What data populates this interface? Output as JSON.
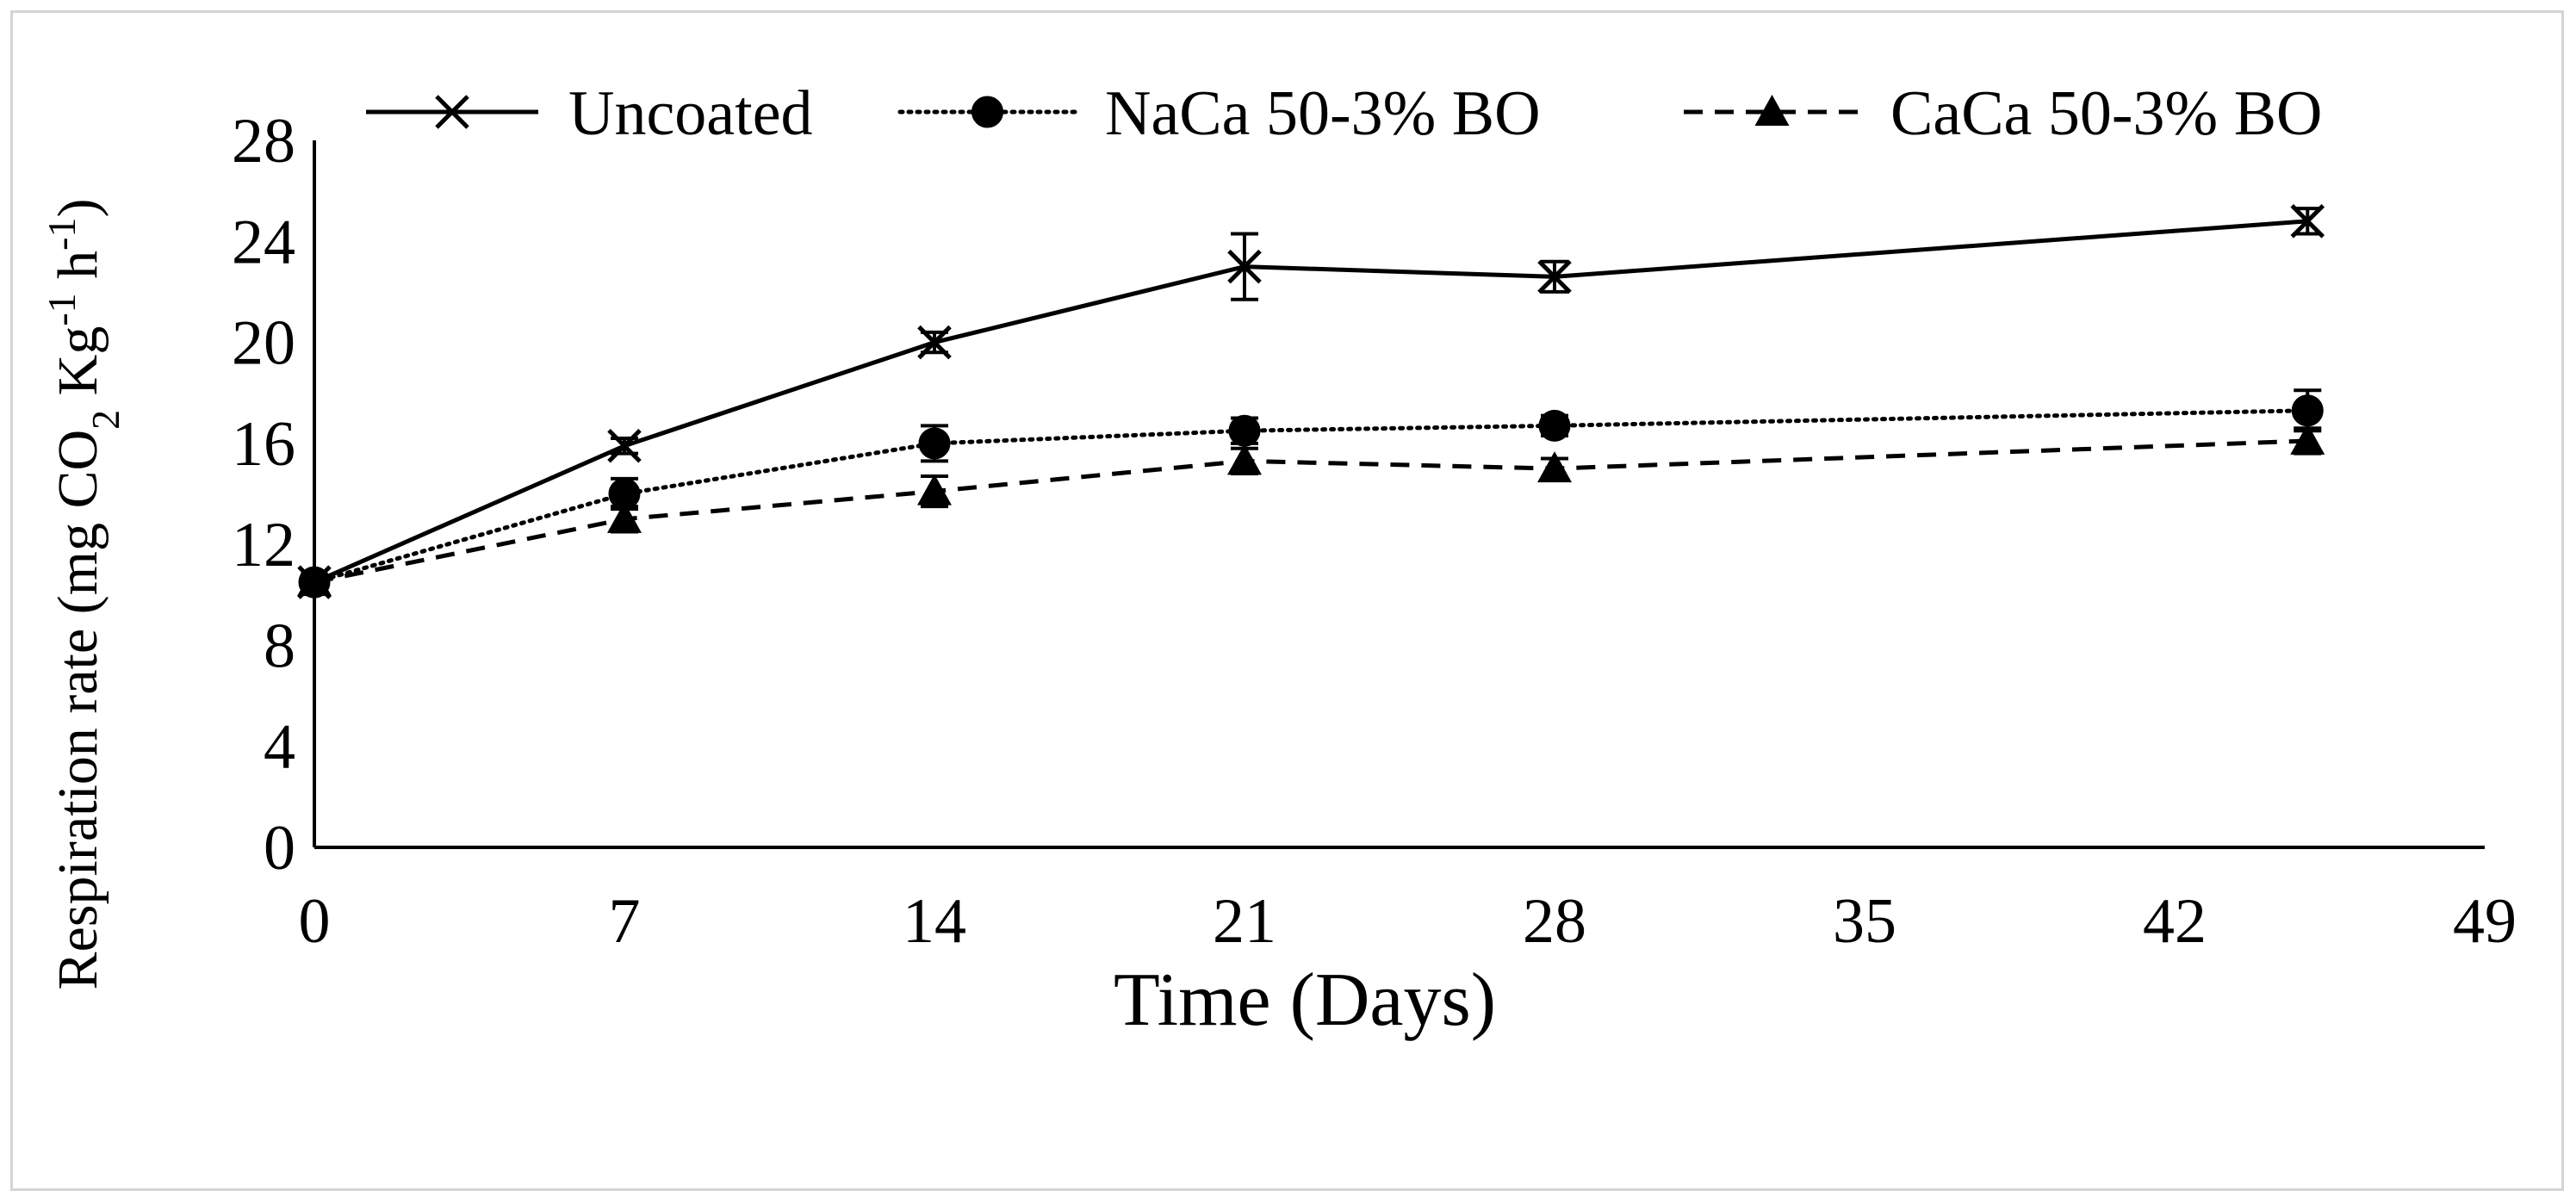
{
  "chart_data": {
    "type": "line",
    "title": "",
    "xlabel": "Time (Days)",
    "ylabel": {
      "main": "Respiration rate (mg CO",
      "sub1": "2",
      "mid": " Kg",
      "sup1": "-1",
      "mid2": " h",
      "sup2": "-1",
      "end": ")"
    },
    "xlim": [
      0,
      49
    ],
    "ylim": [
      0,
      28
    ],
    "xticks": [
      "0",
      "7",
      "14",
      "21",
      "28",
      "35",
      "42",
      "49"
    ],
    "yticks": [
      "0",
      "4",
      "8",
      "12",
      "16",
      "20",
      "24",
      "28"
    ],
    "grid": false,
    "legend_position": "top",
    "x": [
      0,
      7,
      14,
      21,
      28,
      45
    ],
    "series": [
      {
        "name": "Uncoated",
        "line_style": "solid",
        "marker": "x",
        "values": [
          10.5,
          15.9,
          20.0,
          23.0,
          22.6,
          24.8
        ],
        "errors": [
          0.3,
          0.3,
          0.4,
          1.3,
          0.6,
          0.5
        ]
      },
      {
        "name": "NaCa 50-3% BO",
        "line_style": "dotted",
        "marker": "circle",
        "values": [
          10.5,
          14.0,
          16.0,
          16.5,
          16.7,
          17.3
        ],
        "errors": [
          0.3,
          0.6,
          0.7,
          0.5,
          0.4,
          0.8
        ]
      },
      {
        "name": "CaCa 50-3% BO",
        "line_style": "dashed",
        "marker": "triangle",
        "values": [
          10.5,
          13.0,
          14.1,
          15.3,
          15.0,
          16.1
        ],
        "errors": [
          0.3,
          0.5,
          0.6,
          0.5,
          0.4,
          0.5
        ]
      }
    ]
  },
  "colors": {
    "ink": "#000000",
    "frame": "#d4d4d4"
  }
}
